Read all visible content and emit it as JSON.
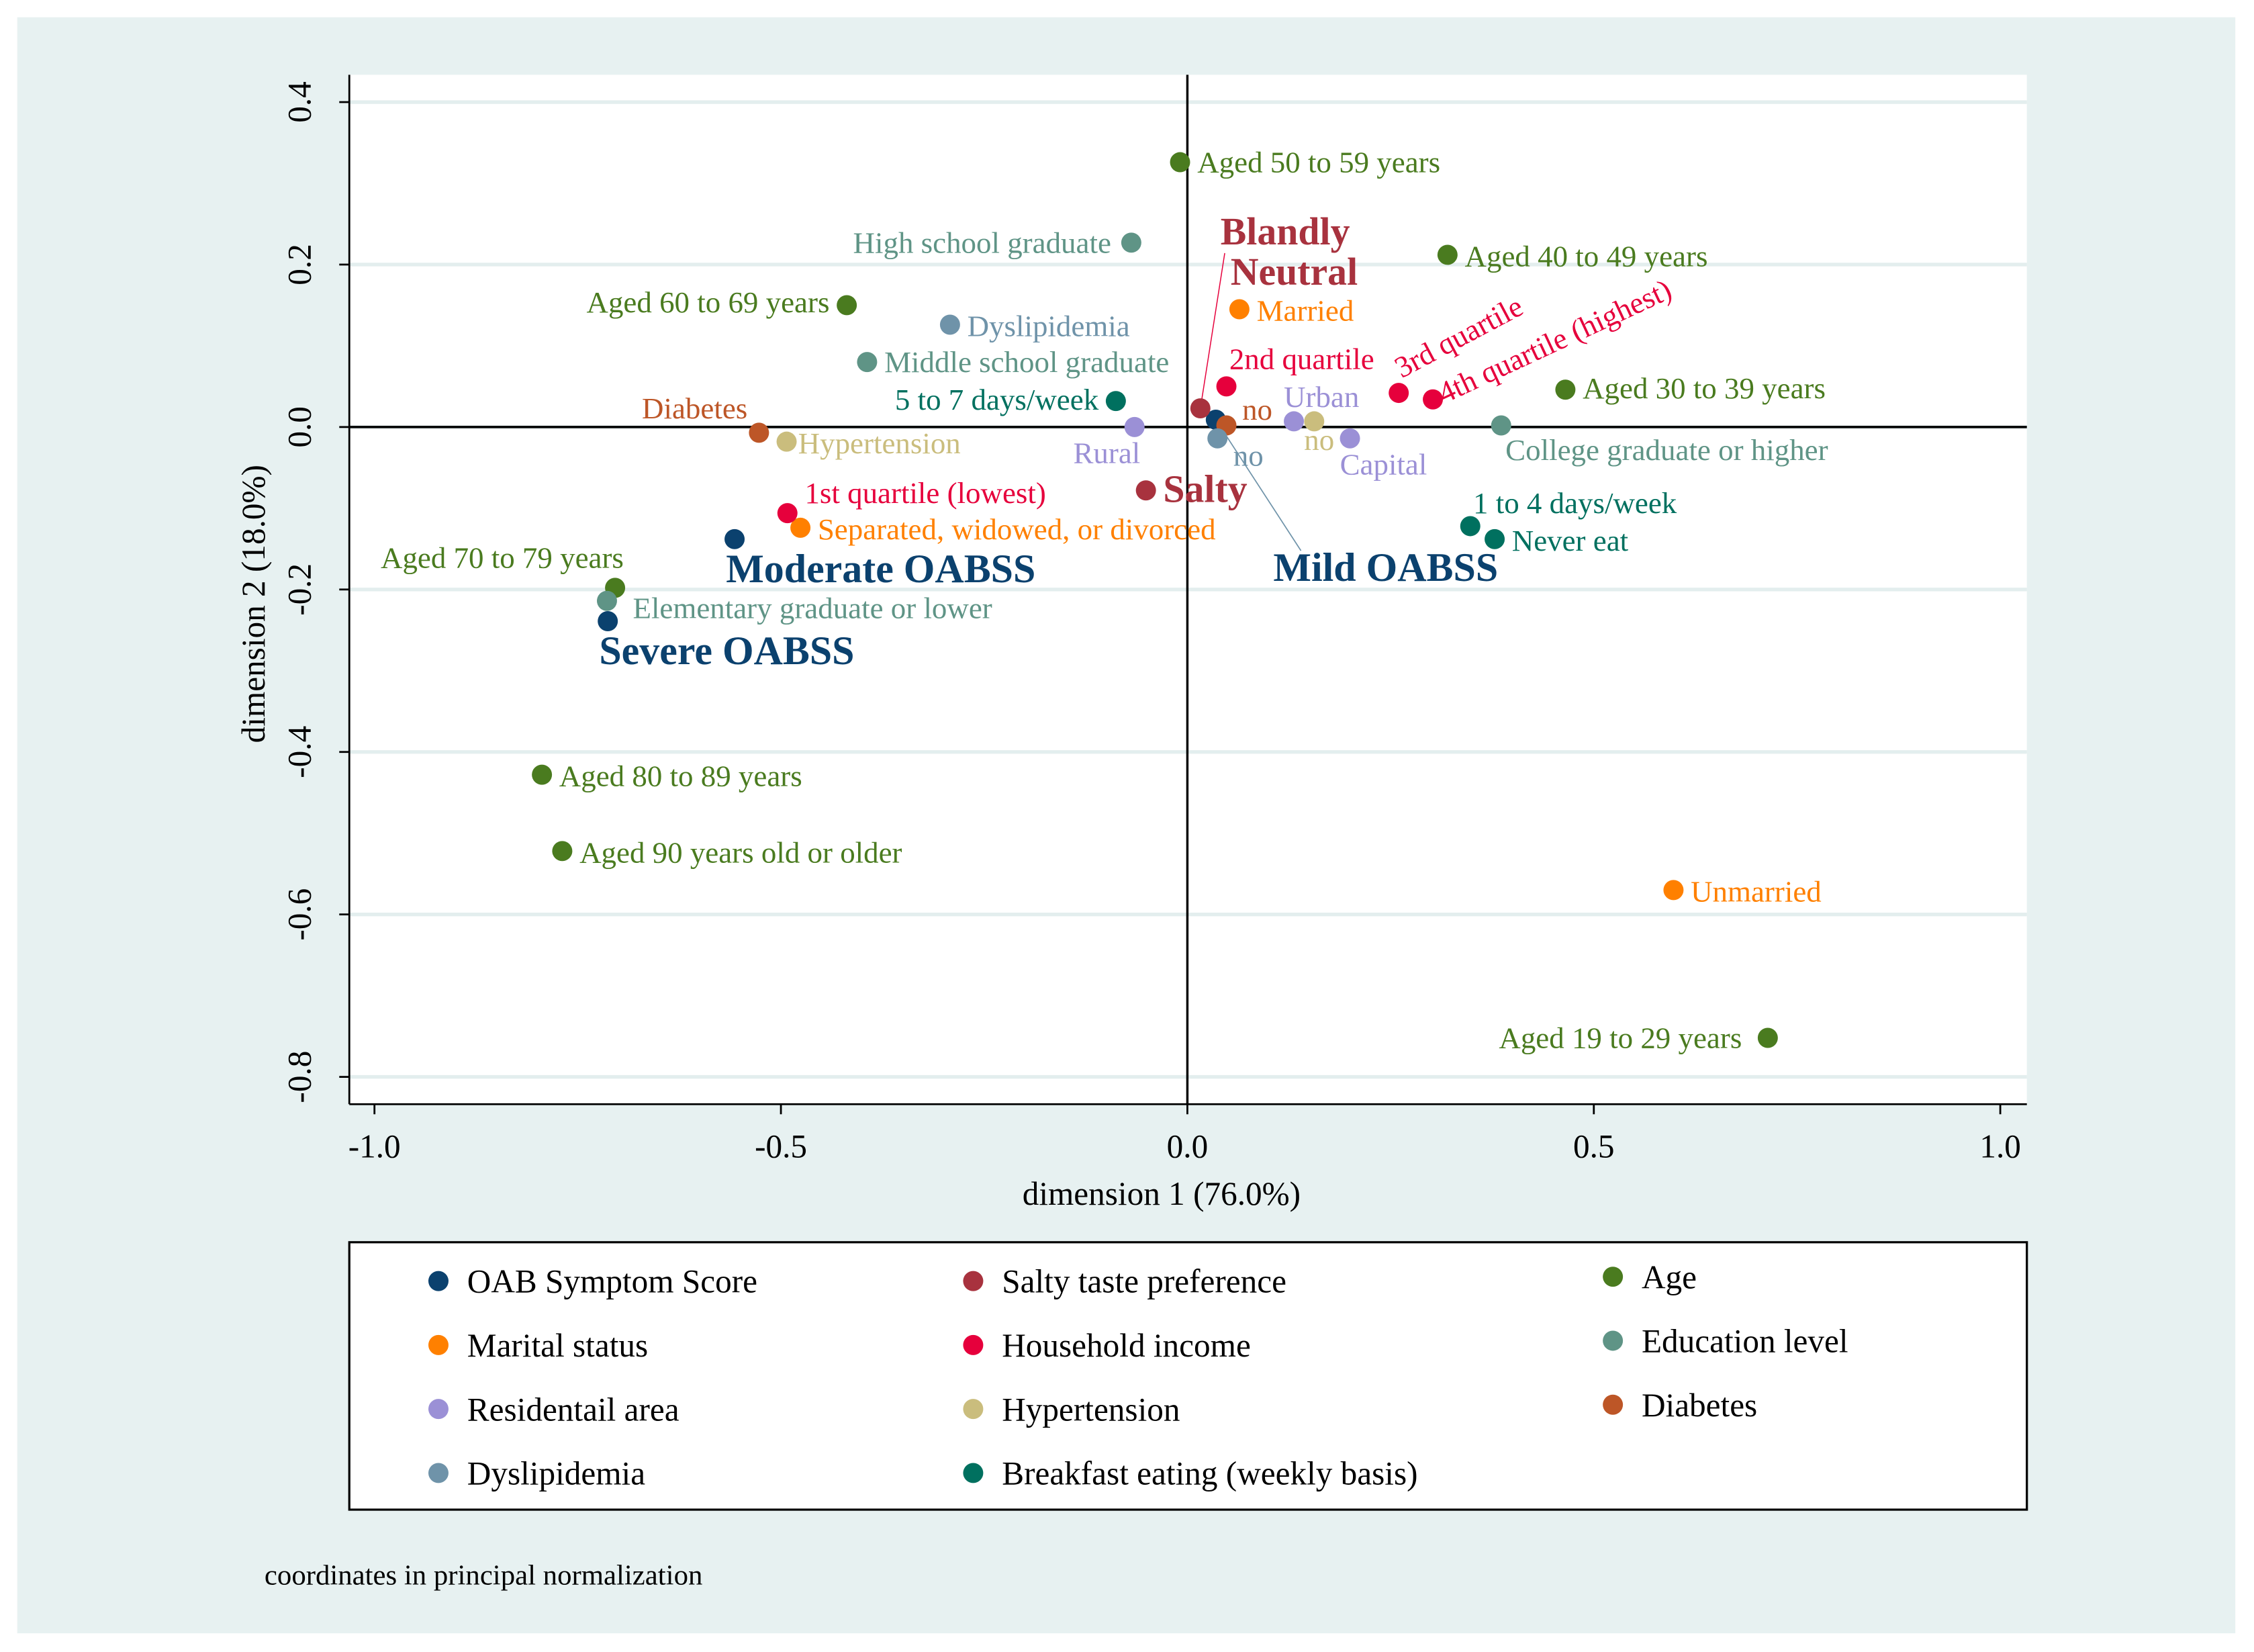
{
  "chart_data": {
    "type": "scatter",
    "title": "",
    "xlabel": "dimension 1 (76.0%)",
    "ylabel": "dimension 2 (18.0%)",
    "xlim": [
      -1.03,
      1.03
    ],
    "ylim": [
      -0.83,
      0.43
    ],
    "xticks": [
      -1.0,
      -0.5,
      0.0,
      0.5,
      1.0
    ],
    "xtick_labels": [
      "-1.0",
      "-0.5",
      "0.0",
      "0.5",
      "1.0"
    ],
    "yticks": [
      0.4,
      0.2,
      0.0,
      -0.2,
      -0.4,
      -0.6,
      -0.8
    ],
    "ytick_labels": [
      "0.4",
      "0.2",
      "0.0",
      "-0.2",
      "-0.4",
      "-0.6",
      "-0.8"
    ],
    "grid": true,
    "note": "coordinates in principal normalization",
    "legend_position": "bottom",
    "series": [
      {
        "name": "OAB Symptom Score",
        "color": "#0b416e",
        "bold": true,
        "points": [
          {
            "label": "Severe OABSS",
            "x": -0.713,
            "y": -0.239
          },
          {
            "label": "Moderate OABSS",
            "x": -0.557,
            "y": -0.138
          },
          {
            "label": "Mild OABSS",
            "x": 0.035,
            "y": 0.009
          }
        ]
      },
      {
        "name": "Salty taste preference",
        "color": "#a8323e",
        "bold": true,
        "points": [
          {
            "label": "Salty",
            "x": -0.051,
            "y": -0.078
          },
          {
            "label": "Blandly Neutral",
            "x": 0.016,
            "y": 0.023
          }
        ]
      },
      {
        "name": "Age",
        "color": "#4a7b1f",
        "points": [
          {
            "label": "Aged 50 to 59 years",
            "x": -0.009,
            "y": 0.326
          },
          {
            "label": "Aged 40 to 49 years",
            "x": 0.32,
            "y": 0.212
          },
          {
            "label": "Aged 60 to 69 years",
            "x": -0.419,
            "y": 0.15
          },
          {
            "label": "Aged 30 to 39 years",
            "x": 0.465,
            "y": 0.046
          },
          {
            "label": "Aged 70 to 79 years",
            "x": -0.704,
            "y": -0.198
          },
          {
            "label": "Aged 80 to 89 years",
            "x": -0.794,
            "y": -0.428
          },
          {
            "label": "Aged 90 years old or older",
            "x": -0.769,
            "y": -0.522
          },
          {
            "label": "Aged 19 to 29 years",
            "x": 0.714,
            "y": -0.752
          }
        ]
      },
      {
        "name": "Marital status",
        "color": "#ff8000",
        "points": [
          {
            "label": "Married",
            "x": 0.064,
            "y": 0.145
          },
          {
            "label": "Separated, widowed, or divorced",
            "x": -0.476,
            "y": -0.124
          },
          {
            "label": "Unmarried",
            "x": 0.598,
            "y": -0.57
          }
        ]
      },
      {
        "name": "Household income",
        "color": "#e6003c",
        "points": [
          {
            "label": "1st quartile (lowest)",
            "x": -0.492,
            "y": -0.106
          },
          {
            "label": "2nd quartile",
            "x": 0.048,
            "y": 0.05
          },
          {
            "label": "3rd quartile",
            "x": 0.26,
            "y": 0.042
          },
          {
            "label": "4th quartile (highest)",
            "x": 0.302,
            "y": 0.034
          }
        ]
      },
      {
        "name": "Education level",
        "color": "#5f9486",
        "points": [
          {
            "label": "High school graduate",
            "x": -0.069,
            "y": 0.227
          },
          {
            "label": "Middle school graduate",
            "x": -0.394,
            "y": 0.08
          },
          {
            "label": "College graduate or higher",
            "x": 0.386,
            "y": 0.002
          },
          {
            "label": "Elementary graduate or lower",
            "x": -0.714,
            "y": -0.214
          }
        ]
      },
      {
        "name": "Residentail area",
        "color": "#9b90d6",
        "points": [
          {
            "label": "Rural",
            "x": -0.065,
            "y": 0.0
          },
          {
            "label": "Urban",
            "x": 0.131,
            "y": 0.007
          },
          {
            "label": "Capital",
            "x": 0.2,
            "y": -0.014
          }
        ]
      },
      {
        "name": "Hypertension",
        "color": "#cabd7d",
        "points": [
          {
            "label": "Hypertension",
            "x": -0.493,
            "y": -0.018
          },
          {
            "label": "no",
            "x": 0.156,
            "y": 0.007
          }
        ]
      },
      {
        "name": "Diabetes",
        "color": "#bd5627",
        "points": [
          {
            "label": "Diabetes",
            "x": -0.527,
            "y": -0.007
          },
          {
            "label": "no",
            "x": 0.048,
            "y": 0.002
          }
        ]
      },
      {
        "name": "Dyslipidemia",
        "color": "#6f93a9",
        "points": [
          {
            "label": "Dyslipidemia",
            "x": -0.292,
            "y": 0.126
          },
          {
            "label": "no",
            "x": 0.037,
            "y": -0.014
          }
        ]
      },
      {
        "name": "Breakfast eating (weekly basis)",
        "color": "#00705f",
        "points": [
          {
            "label": "5 to 7 days/week",
            "x": -0.088,
            "y": 0.032
          },
          {
            "label": "1 to 4 days/week",
            "x": 0.348,
            "y": -0.122
          },
          {
            "label": "Never eat",
            "x": 0.378,
            "y": -0.138
          }
        ]
      }
    ]
  }
}
